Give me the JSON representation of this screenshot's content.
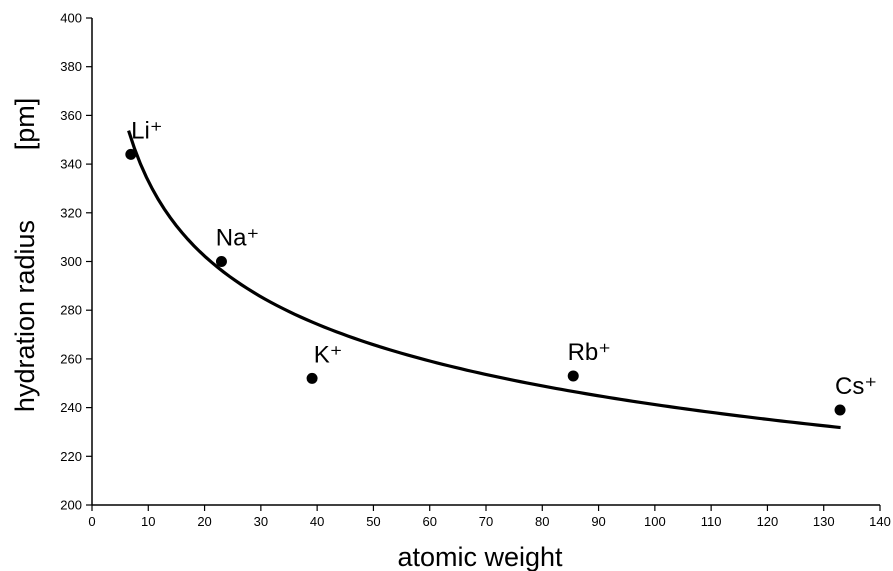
{
  "chart_data": {
    "type": "scatter",
    "title": "",
    "xlabel": "atomic weight",
    "ylabel": "hydration radius",
    "ylabel_unit": "[pm]",
    "xlim": [
      0,
      140
    ],
    "ylim": [
      200,
      400
    ],
    "x_ticks": [
      0,
      10,
      20,
      30,
      40,
      50,
      60,
      70,
      80,
      90,
      100,
      110,
      120,
      130,
      140
    ],
    "y_ticks": [
      200,
      220,
      240,
      260,
      280,
      300,
      320,
      340,
      360,
      380,
      400
    ],
    "grid": false,
    "legend": "none",
    "series": [
      {
        "points": [
          {
            "label": "Li⁺",
            "x": 6.9,
            "y": 344
          },
          {
            "label": "Na⁺",
            "x": 23.0,
            "y": 300
          },
          {
            "label": "K⁺",
            "x": 39.1,
            "y": 252
          },
          {
            "label": "Rb⁺",
            "x": 85.5,
            "y": 253
          },
          {
            "label": "Cs⁺",
            "x": 132.9,
            "y": 239
          }
        ]
      }
    ],
    "trendline": {
      "type": "power",
      "x_range": [
        6.5,
        133
      ],
      "a": 459.7,
      "b": -0.14,
      "color": "#000000"
    },
    "colors": {
      "marker": "#000000",
      "axes": "#000000",
      "background": "#ffffff"
    }
  }
}
